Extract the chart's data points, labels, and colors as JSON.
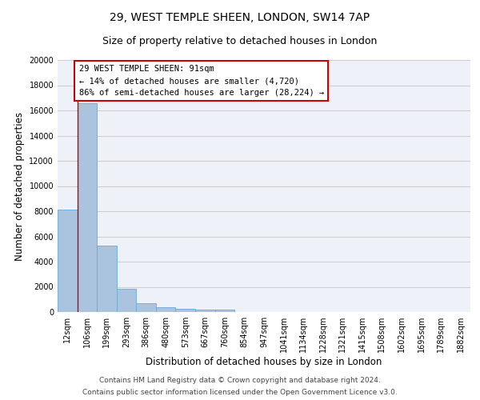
{
  "title_line1": "29, WEST TEMPLE SHEEN, LONDON, SW14 7AP",
  "title_line2": "Size of property relative to detached houses in London",
  "xlabel": "Distribution of detached houses by size in London",
  "ylabel": "Number of detached properties",
  "categories": [
    "12sqm",
    "106sqm",
    "199sqm",
    "293sqm",
    "386sqm",
    "480sqm",
    "573sqm",
    "667sqm",
    "760sqm",
    "854sqm",
    "947sqm",
    "1041sqm",
    "1134sqm",
    "1228sqm",
    "1321sqm",
    "1415sqm",
    "1508sqm",
    "1602sqm",
    "1695sqm",
    "1789sqm",
    "1882sqm"
  ],
  "values": [
    8100,
    16600,
    5300,
    1850,
    700,
    350,
    250,
    200,
    160,
    0,
    0,
    0,
    0,
    0,
    0,
    0,
    0,
    0,
    0,
    0,
    0
  ],
  "bar_color": "#aac4e0",
  "bar_edge_color": "#6aaad4",
  "annotation_title": "29 WEST TEMPLE SHEEN: 91sqm",
  "annotation_line1": "← 14% of detached houses are smaller (4,720)",
  "annotation_line2": "86% of semi-detached houses are larger (28,224) →",
  "annotation_box_color": "#ffffff",
  "annotation_box_edge": "#cc0000",
  "property_line_color": "#cc0000",
  "ylim": [
    0,
    20000
  ],
  "yticks": [
    0,
    2000,
    4000,
    6000,
    8000,
    10000,
    12000,
    14000,
    16000,
    18000,
    20000
  ],
  "grid_color": "#cccccc",
  "background_color": "#eef2f8",
  "footer_line1": "Contains HM Land Registry data © Crown copyright and database right 2024.",
  "footer_line2": "Contains public sector information licensed under the Open Government Licence v3.0.",
  "title_fontsize": 10,
  "subtitle_fontsize": 9,
  "axis_label_fontsize": 8.5,
  "tick_fontsize": 7,
  "annotation_fontsize": 7.5,
  "footer_fontsize": 6.5
}
